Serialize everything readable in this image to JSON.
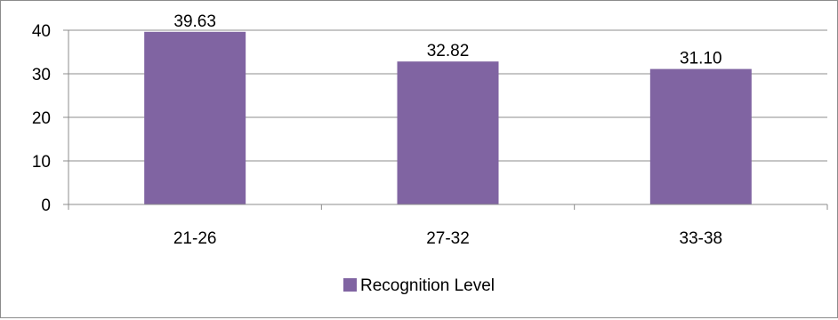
{
  "chart_data": {
    "type": "bar",
    "categories": [
      "21-26",
      "27-32",
      "33-38"
    ],
    "series": [
      {
        "name": "Recognition Level",
        "values": [
          39.63,
          32.82,
          31.1
        ],
        "color": "#8064a2"
      }
    ],
    "data_labels": [
      "39.63",
      "32.82",
      "31.10"
    ],
    "y_ticks": [
      "0",
      "10",
      "20",
      "30",
      "40"
    ],
    "ylim": [
      0,
      40
    ],
    "grid": true,
    "legend_position": "bottom",
    "title": "",
    "xlabel": "",
    "ylabel": ""
  }
}
